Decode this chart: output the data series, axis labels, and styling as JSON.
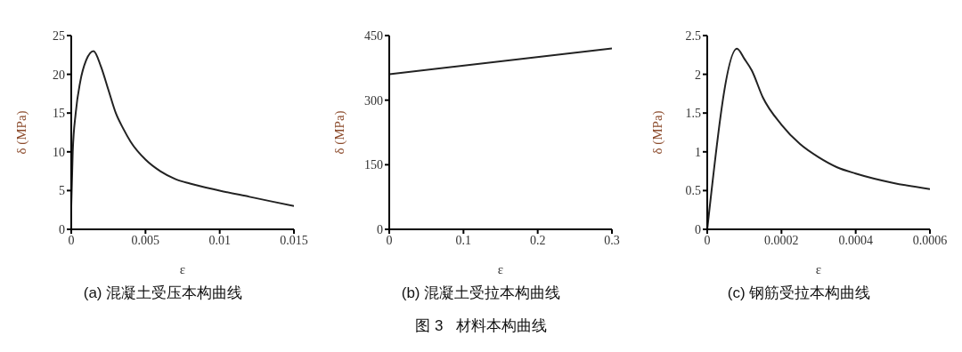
{
  "chart_data": [
    {
      "type": "line",
      "title": "(a) 混凝土受压本构曲线",
      "xlabel": "ε",
      "ylabel": "δ (MPa)",
      "color": "#222222",
      "x": [
        0,
        0.0001,
        0.0003,
        0.0006,
        0.001,
        0.0015,
        0.002,
        0.0025,
        0.003,
        0.0035,
        0.004,
        0.005,
        0.006,
        0.007,
        0.008,
        0.01,
        0.012,
        0.015
      ],
      "values": [
        3,
        10,
        15,
        19,
        21.8,
        23,
        21,
        18,
        15,
        13,
        11.3,
        9,
        7.5,
        6.5,
        5.9,
        5,
        4.2,
        3
      ],
      "xlim": [
        0,
        0.015
      ],
      "xticks": [
        0,
        0.005,
        0.01,
        0.015
      ],
      "ylim": [
        0,
        25
      ],
      "yticks": [
        0,
        5,
        10,
        15,
        20,
        25
      ]
    },
    {
      "type": "line",
      "title": "(b) 混凝土受拉本构曲线",
      "xlabel": "ε",
      "ylabel": "δ (MPa)",
      "color": "#222222",
      "x": [
        0,
        0.3
      ],
      "values": [
        360,
        420
      ],
      "xlim": [
        0,
        0.3
      ],
      "xticks": [
        0,
        0.1,
        0.2,
        0.3
      ],
      "ylim": [
        0,
        450
      ],
      "yticks": [
        0,
        150,
        300,
        450
      ],
      "annotations": [
        "图 3   材料本构曲线"
      ]
    },
    {
      "type": "line",
      "title": "(c) 钢筋受拉本构曲线",
      "xlabel": "ε",
      "ylabel": "δ (MPa)",
      "color": "#222222",
      "x": [
        0,
        8e-05,
        0.0001,
        0.00012,
        0.00015,
        0.0002,
        0.00025,
        0.0003,
        0.00035,
        0.0004,
        0.0005,
        0.0006
      ],
      "values": [
        0,
        2.33,
        2.2,
        2.05,
        1.7,
        1.35,
        1.1,
        0.93,
        0.8,
        0.72,
        0.6,
        0.52
      ],
      "xlim": [
        0,
        0.0006
      ],
      "xticks": [
        0,
        0.0002,
        0.0004,
        0.0006
      ],
      "ylim": [
        0,
        2.5
      ],
      "yticks": [
        0,
        0.5,
        1,
        1.5,
        2,
        2.5
      ]
    }
  ]
}
